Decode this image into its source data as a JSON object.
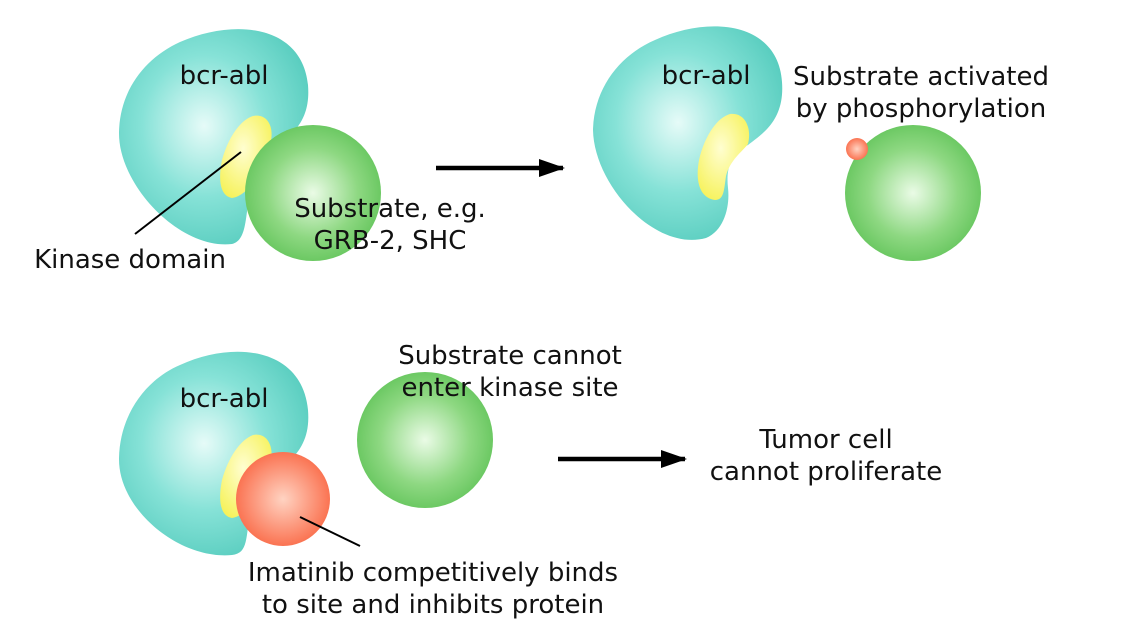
{
  "colors": {
    "protein_light": "#e6fbf8",
    "protein": "#86e2d7",
    "protein_dark": "#59cdbf",
    "pocket_light": "#fffed0",
    "pocket": "#f6f25a",
    "substrate_light": "#eafbe6",
    "substrate": "#8ed882",
    "substrate_dark": "#62c45a",
    "drug_light": "#ffd3c2",
    "drug": "#fa6a47",
    "line": "#000000"
  },
  "panels": {
    "top_left": {
      "protein_label": "bcr-abl",
      "substrate_label": [
        "Substrate, e.g.",
        "GRB-2, SHC"
      ],
      "domain_label": "Kinase domain"
    },
    "top_right": {
      "protein_label": "bcr-abl",
      "activated_label": [
        "Substrate activated",
        "by phosphorylation"
      ]
    },
    "bottom_left": {
      "protein_label": "bcr-abl",
      "blocked_label": [
        "Substrate cannot",
        "enter kinase site"
      ],
      "drug_label": [
        "Imatinib competitively binds",
        "to site and inhibits protein"
      ]
    },
    "bottom_right": {
      "outcome_label": [
        "Tumor cell",
        "cannot proliferate"
      ]
    }
  }
}
